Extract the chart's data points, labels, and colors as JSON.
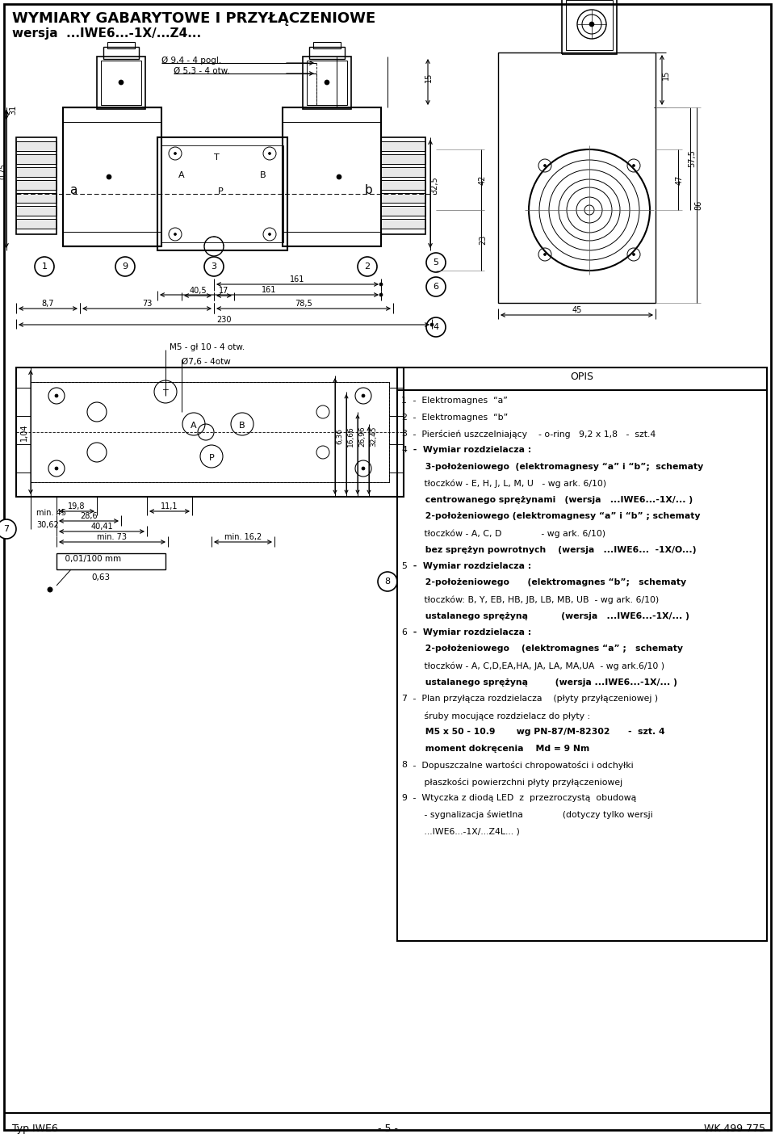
{
  "title_line1": "WYMIARY GABARYTOWE I PRZYŁĄCZENIOWE",
  "title_line2": "wersja  ...IWE6...-1X/...Z4...",
  "background_color": "#ffffff",
  "footer_left": "Typ IWE6",
  "footer_center": "- 5 -",
  "footer_right": "WK 499 775",
  "opis_lines": [
    {
      "num": "1",
      "bold_num": false,
      "text": " -  Elektromagnes  “a”",
      "bold": false
    },
    {
      "num": "2",
      "bold_num": false,
      "text": " -  Elektromagnes  “b”",
      "bold": false
    },
    {
      "num": "3",
      "bold_num": false,
      "text": " -  Pierścień uszczelniający    - o-ring   9,2 x 1,8   -  szt.4",
      "bold": false
    },
    {
      "num": "4",
      "bold_num": false,
      "text": " -  Wymiar rozdzielacza :",
      "bold": true
    },
    {
      "num": "",
      "bold_num": false,
      "text": "     3-położeniowego  (elektromagnesy “a” i “b”;  schematy",
      "bold": true
    },
    {
      "num": "",
      "bold_num": false,
      "text": "     tłoczków - E, H, J, L, M, U   - wg ark. 6/10)",
      "bold": false
    },
    {
      "num": "",
      "bold_num": false,
      "text": "     centrowanego sprężynami   (wersja   ...IWE6...-1X/... )",
      "bold": true
    },
    {
      "num": "",
      "bold_num": false,
      "text": "     2-położeniowego (elektromagnesy “a” i “b” ; schematy",
      "bold": true
    },
    {
      "num": "",
      "bold_num": false,
      "text": "     tłoczków - A, C, D              - wg ark. 6/10)",
      "bold": false
    },
    {
      "num": "",
      "bold_num": false,
      "text": "     bez sprężyn powrotnych    (wersja   ...IWE6...  -1X/O...)",
      "bold": true
    },
    {
      "num": "5",
      "bold_num": false,
      "text": " -  Wymiar rozdzielacza :",
      "bold": true
    },
    {
      "num": "",
      "bold_num": false,
      "text": "     2-położeniowego      (elektromagnes “b”;   schematy",
      "bold": true
    },
    {
      "num": "",
      "bold_num": false,
      "text": "     tłoczków: B, Y, EB, HB, JB, LB, MB, UB  - wg ark. 6/10)",
      "bold": false
    },
    {
      "num": "",
      "bold_num": false,
      "text": "     ustalanego sprężyną           (wersja   ...IWE6...-1X/... )",
      "bold": true
    },
    {
      "num": "6",
      "bold_num": false,
      "text": " -  Wymiar rozdzielacza :",
      "bold": true
    },
    {
      "num": "",
      "bold_num": false,
      "text": "     2-położeniowego    (elektromagnes “a” ;   schematy",
      "bold": true
    },
    {
      "num": "",
      "bold_num": false,
      "text": "     tłoczków - A, C,D,EA,HA, JA, LA, MA,UA  - wg ark.6/10 )",
      "bold": false
    },
    {
      "num": "",
      "bold_num": false,
      "text": "     ustalanego sprężyną         (wersja ...IWE6...-1X/... )",
      "bold": true
    },
    {
      "num": "7",
      "bold_num": false,
      "text": " -  Plan przyłącza rozdzielacza    (płyty przyłączeniowej )",
      "bold": false
    },
    {
      "num": "",
      "bold_num": false,
      "text": "     śruby mocujące rozdzielacz do płyty :",
      "bold": false
    },
    {
      "num": "",
      "bold_num": false,
      "text": "     M5 x 50 - 10.9       wg PN-87/M-82302      -  szt. 4",
      "bold": true
    },
    {
      "num": "",
      "bold_num": false,
      "text": "     moment dokręcenia    Md = 9 Nm",
      "bold": true
    },
    {
      "num": "8",
      "bold_num": false,
      "text": " -  Dopuszczalne wartości chropowatości i odchyłki",
      "bold": false
    },
    {
      "num": "",
      "bold_num": false,
      "text": "     płaszkości powierzchni płyty przyłączeniowej",
      "bold": false
    },
    {
      "num": "9",
      "bold_num": false,
      "text": " -  Wtyczka z diodą LED  z  przezroczystą  obudową",
      "bold": false
    },
    {
      "num": "",
      "bold_num": false,
      "text": "     - sygnalizacja świetlna              (dotyczy tylko wersji",
      "bold": false
    },
    {
      "num": "",
      "bold_num": false,
      "text": "     ...IWE6...-1X/...Z4L... )",
      "bold": false
    }
  ]
}
